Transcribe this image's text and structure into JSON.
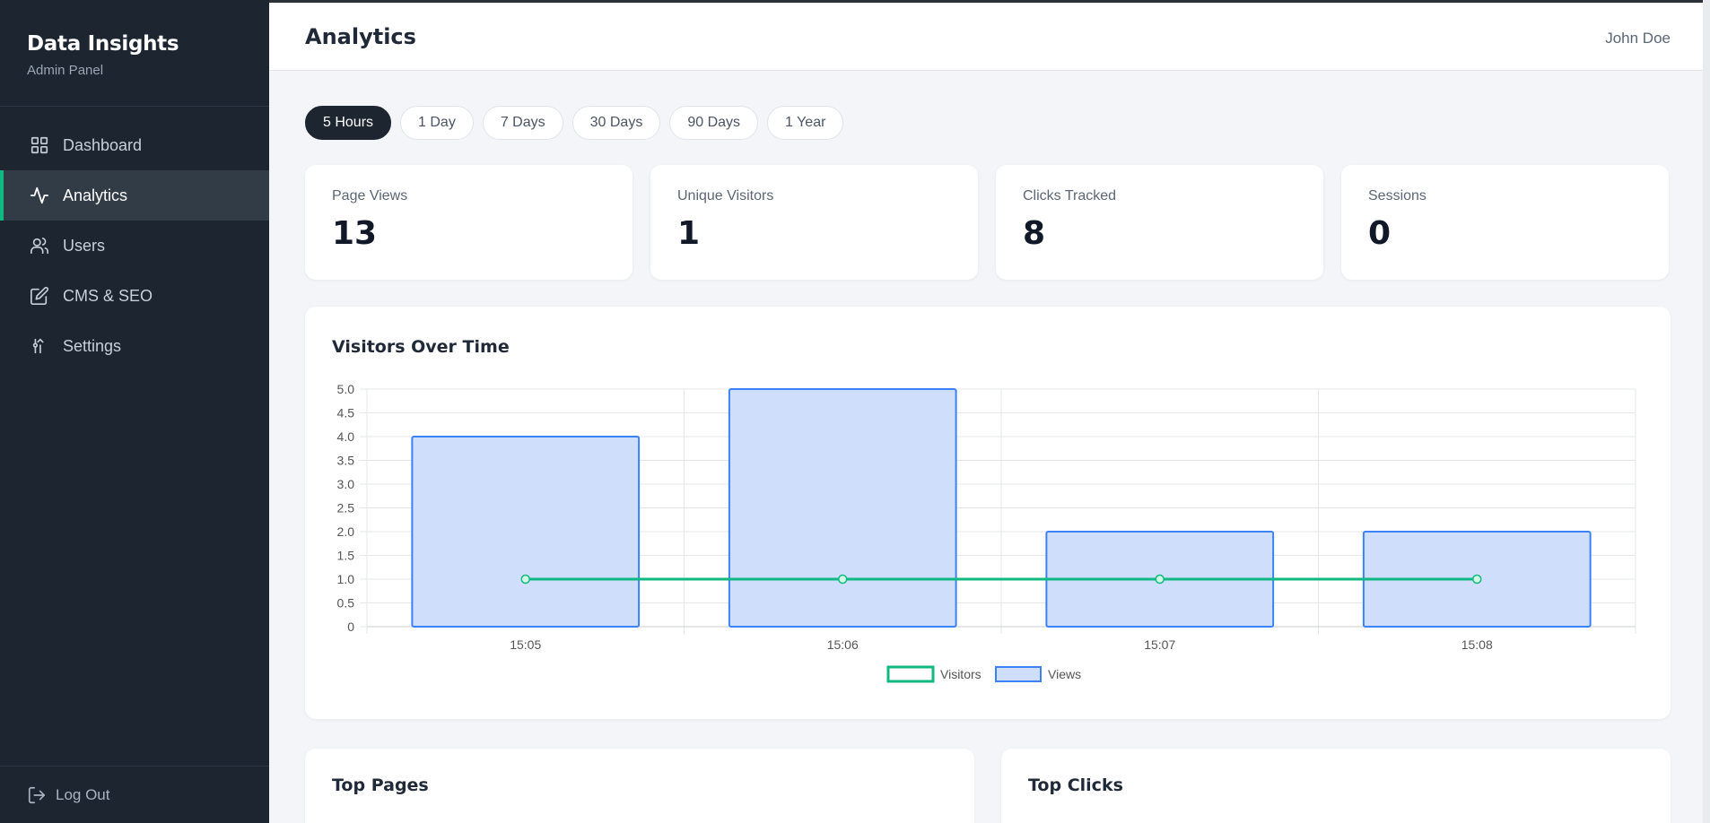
{
  "sidebar": {
    "brand_title": "Data Insights",
    "brand_subtitle": "Admin Panel",
    "items": [
      {
        "label": "Dashboard",
        "icon": "grid-icon"
      },
      {
        "label": "Analytics",
        "icon": "activity-icon",
        "active": true
      },
      {
        "label": "Users",
        "icon": "users-icon"
      },
      {
        "label": "CMS & SEO",
        "icon": "edit-icon"
      },
      {
        "label": "Settings",
        "icon": "settings-icon"
      }
    ],
    "logout_label": "Log Out"
  },
  "header": {
    "title": "Analytics",
    "user": "John Doe"
  },
  "ranges": [
    "5 Hours",
    "1 Day",
    "7 Days",
    "30 Days",
    "90 Days",
    "1 Year"
  ],
  "active_range": "5 Hours",
  "stats": [
    {
      "label": "Page Views",
      "value": "13"
    },
    {
      "label": "Unique Visitors",
      "value": "1"
    },
    {
      "label": "Clicks Tracked",
      "value": "8"
    },
    {
      "label": "Sessions",
      "value": "0"
    }
  ],
  "chart_title": "Visitors Over Time",
  "chart_data": {
    "type": "bar",
    "categories": [
      "15:05",
      "15:06",
      "15:07",
      "15:08"
    ],
    "series": [
      {
        "name": "Visitors",
        "type": "line",
        "values": [
          1,
          1,
          1,
          1
        ],
        "color": "#10b981"
      },
      {
        "name": "Views",
        "type": "bar",
        "values": [
          4,
          5,
          2,
          2
        ],
        "color": "#3b82f6"
      }
    ],
    "ylim": [
      0,
      5
    ],
    "yticks": [
      "0",
      "0.5",
      "1.0",
      "1.5",
      "2.0",
      "2.5",
      "3.0",
      "3.5",
      "4.0",
      "4.5",
      "5.0"
    ],
    "legend": "bottom",
    "grid": true
  },
  "bottom": {
    "top_pages": "Top Pages",
    "top_clicks": "Top Clicks"
  },
  "colors": {
    "sidebar_bg": "#1c2530",
    "accent": "#10b981",
    "bar_fill": "#cfdffb",
    "bar_stroke": "#3b82f6"
  }
}
